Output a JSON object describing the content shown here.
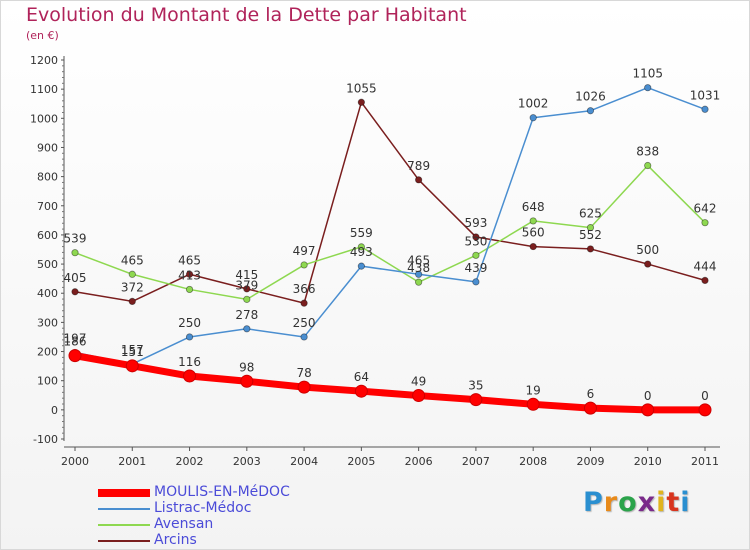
{
  "title": "Evolution du Montant de la Dette par Habitant",
  "subtitle": "(en €)",
  "logo": {
    "letters": [
      "P",
      "r",
      "o",
      "x",
      "i",
      "t",
      "i"
    ],
    "colors": [
      "#2a8fd0",
      "#e88a1a",
      "#2aa34a",
      "#7a2a8a",
      "#e0b41e",
      "#d8341e",
      "#2a8fd0"
    ]
  },
  "chart_data": {
    "type": "line",
    "title": "Evolution du Montant de la Dette par Habitant",
    "ylabel": "(en €)",
    "xlabel": "",
    "ylim": [
      -100,
      1200
    ],
    "yticks": [
      -100,
      0,
      100,
      200,
      300,
      400,
      500,
      600,
      700,
      800,
      900,
      1000,
      1100,
      1200
    ],
    "x": [
      "2000",
      "2001",
      "2002",
      "2003",
      "2004",
      "2005",
      "2006",
      "2007",
      "2008",
      "2009",
      "2010",
      "2011"
    ],
    "grid": false,
    "legend": "bottom-left",
    "series": [
      {
        "name": "MOULIS-EN-MéDOC",
        "color": "#ff0000",
        "values": [
          186,
          151,
          116,
          98,
          78,
          64,
          49,
          35,
          19,
          6,
          0,
          0
        ],
        "labels": [
          "186",
          "151",
          "116",
          "98",
          "78",
          "64",
          "49",
          "35",
          "19",
          "6",
          "0",
          "0"
        ]
      },
      {
        "name": "Listrac-Médoc",
        "color": "#4a8ed0",
        "values": [
          197,
          157,
          250,
          278,
          250,
          493,
          465,
          439,
          1002,
          1026,
          1105,
          1031
        ],
        "labels": [
          "197",
          "157",
          "250",
          "278",
          "250",
          "493",
          "465",
          "439",
          "1002",
          "1026",
          "1105",
          "1031"
        ]
      },
      {
        "name": "Avensan",
        "color": "#8ed850",
        "values": [
          539,
          465,
          413,
          379,
          497,
          559,
          438,
          530,
          648,
          625,
          838,
          642
        ],
        "labels": [
          "539",
          "465",
          "413",
          "379",
          "497",
          "559",
          "438",
          "530",
          "648",
          "625",
          "838",
          "642"
        ]
      },
      {
        "name": "Arcins",
        "color": "#7a1e1e",
        "values": [
          405,
          372,
          465,
          415,
          366,
          1055,
          789,
          593,
          560,
          552,
          500,
          444
        ],
        "labels": [
          "405",
          "372",
          "465",
          "415",
          "366",
          "1055",
          "789",
          "593",
          "560",
          "552",
          "500",
          "444"
        ]
      }
    ]
  }
}
